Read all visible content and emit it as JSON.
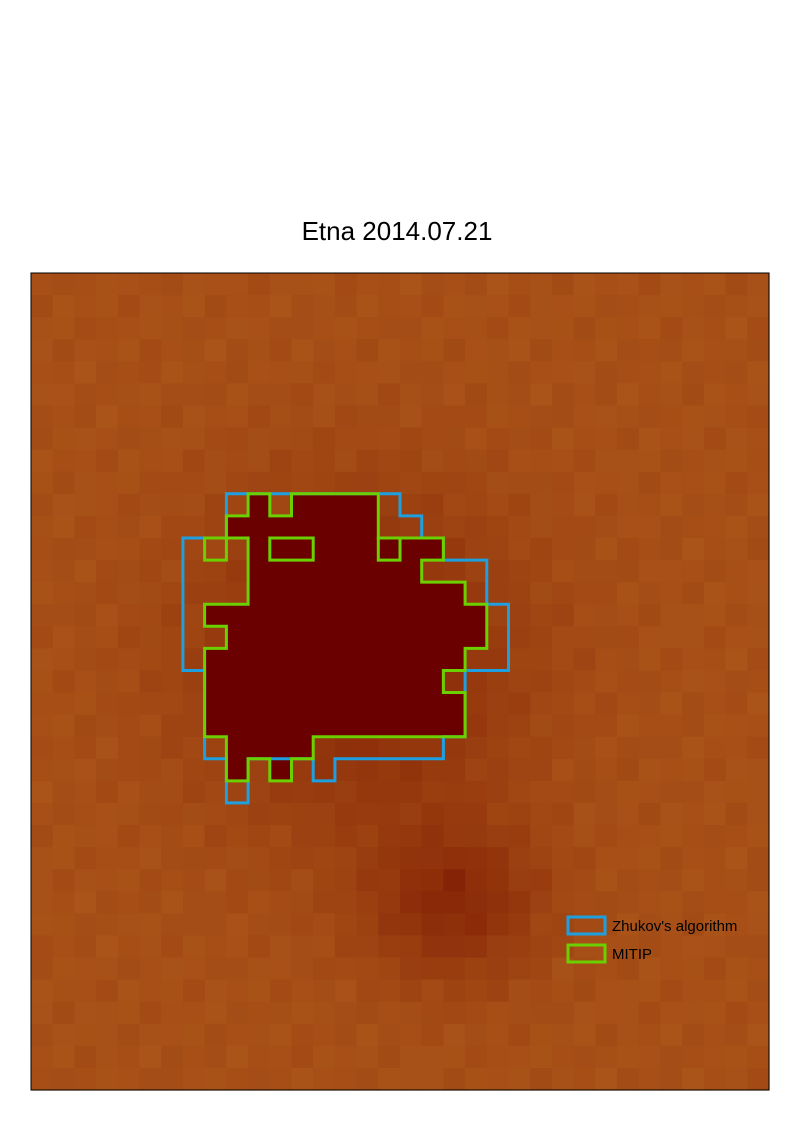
{
  "chart_data": {
    "type": "heatmap",
    "title": "Etna 2014.07.21",
    "xlabel": "",
    "ylabel": "",
    "grid": false,
    "grid_size": [
      34,
      37
    ],
    "legend_position": "bottom-right",
    "colors": {
      "lowest": "#b4601e",
      "low": "#9e4412",
      "high": "#8a2a08",
      "highest": "#6a0000",
      "frame": "#000000"
    },
    "series": [
      {
        "name": "Zhukov's algorithm",
        "color": "#1ea0e0",
        "outline": [
          [
            9,
            10
          ],
          [
            17,
            10
          ],
          [
            17,
            11
          ],
          [
            18,
            11
          ],
          [
            18,
            12
          ],
          [
            19,
            12
          ],
          [
            19,
            13
          ],
          [
            21,
            13
          ],
          [
            21,
            15
          ],
          [
            22,
            15
          ],
          [
            22,
            18
          ],
          [
            20,
            18
          ],
          [
            20,
            19
          ],
          [
            20,
            21
          ],
          [
            19,
            21
          ],
          [
            19,
            22
          ],
          [
            14,
            22
          ],
          [
            14,
            23
          ],
          [
            13,
            23
          ],
          [
            13,
            22
          ],
          [
            10,
            22
          ],
          [
            10,
            24
          ],
          [
            9,
            24
          ],
          [
            9,
            22
          ],
          [
            8,
            22
          ],
          [
            8,
            18
          ],
          [
            7,
            18
          ],
          [
            7,
            12
          ],
          [
            9,
            12
          ]
        ]
      },
      {
        "name": "MITIP",
        "color": "#6ad000",
        "outline": [
          [
            10,
            10
          ],
          [
            11,
            10
          ],
          [
            11,
            11
          ],
          [
            12,
            11
          ],
          [
            12,
            10
          ],
          [
            16,
            10
          ],
          [
            16,
            12
          ],
          [
            19,
            12
          ],
          [
            19,
            13
          ],
          [
            18,
            13
          ],
          [
            18,
            14
          ],
          [
            20,
            14
          ],
          [
            20,
            15
          ],
          [
            21,
            15
          ],
          [
            21,
            17
          ],
          [
            20,
            17
          ],
          [
            20,
            18
          ],
          [
            19,
            18
          ],
          [
            19,
            19
          ],
          [
            20,
            19
          ],
          [
            20,
            21
          ],
          [
            13,
            21
          ],
          [
            13,
            22
          ],
          [
            12,
            22
          ],
          [
            12,
            23
          ],
          [
            11,
            23
          ],
          [
            11,
            22
          ],
          [
            10,
            22
          ],
          [
            10,
            23
          ],
          [
            9,
            23
          ],
          [
            9,
            21
          ],
          [
            8,
            21
          ],
          [
            8,
            17
          ],
          [
            9,
            17
          ],
          [
            9,
            16
          ],
          [
            8,
            16
          ],
          [
            8,
            15
          ],
          [
            10,
            15
          ],
          [
            10,
            12
          ],
          [
            9,
            12
          ],
          [
            9,
            11
          ],
          [
            10,
            11
          ]
        ],
        "holes": [
          [
            [
              8,
              12
            ],
            [
              9,
              12
            ],
            [
              9,
              13
            ],
            [
              8,
              13
            ]
          ],
          [
            [
              11,
              12
            ],
            [
              13,
              12
            ],
            [
              13,
              13
            ],
            [
              11,
              13
            ]
          ],
          [
            [
              16,
              12
            ],
            [
              17,
              12
            ],
            [
              17,
              13
            ],
            [
              16,
              13
            ]
          ]
        ]
      }
    ]
  }
}
